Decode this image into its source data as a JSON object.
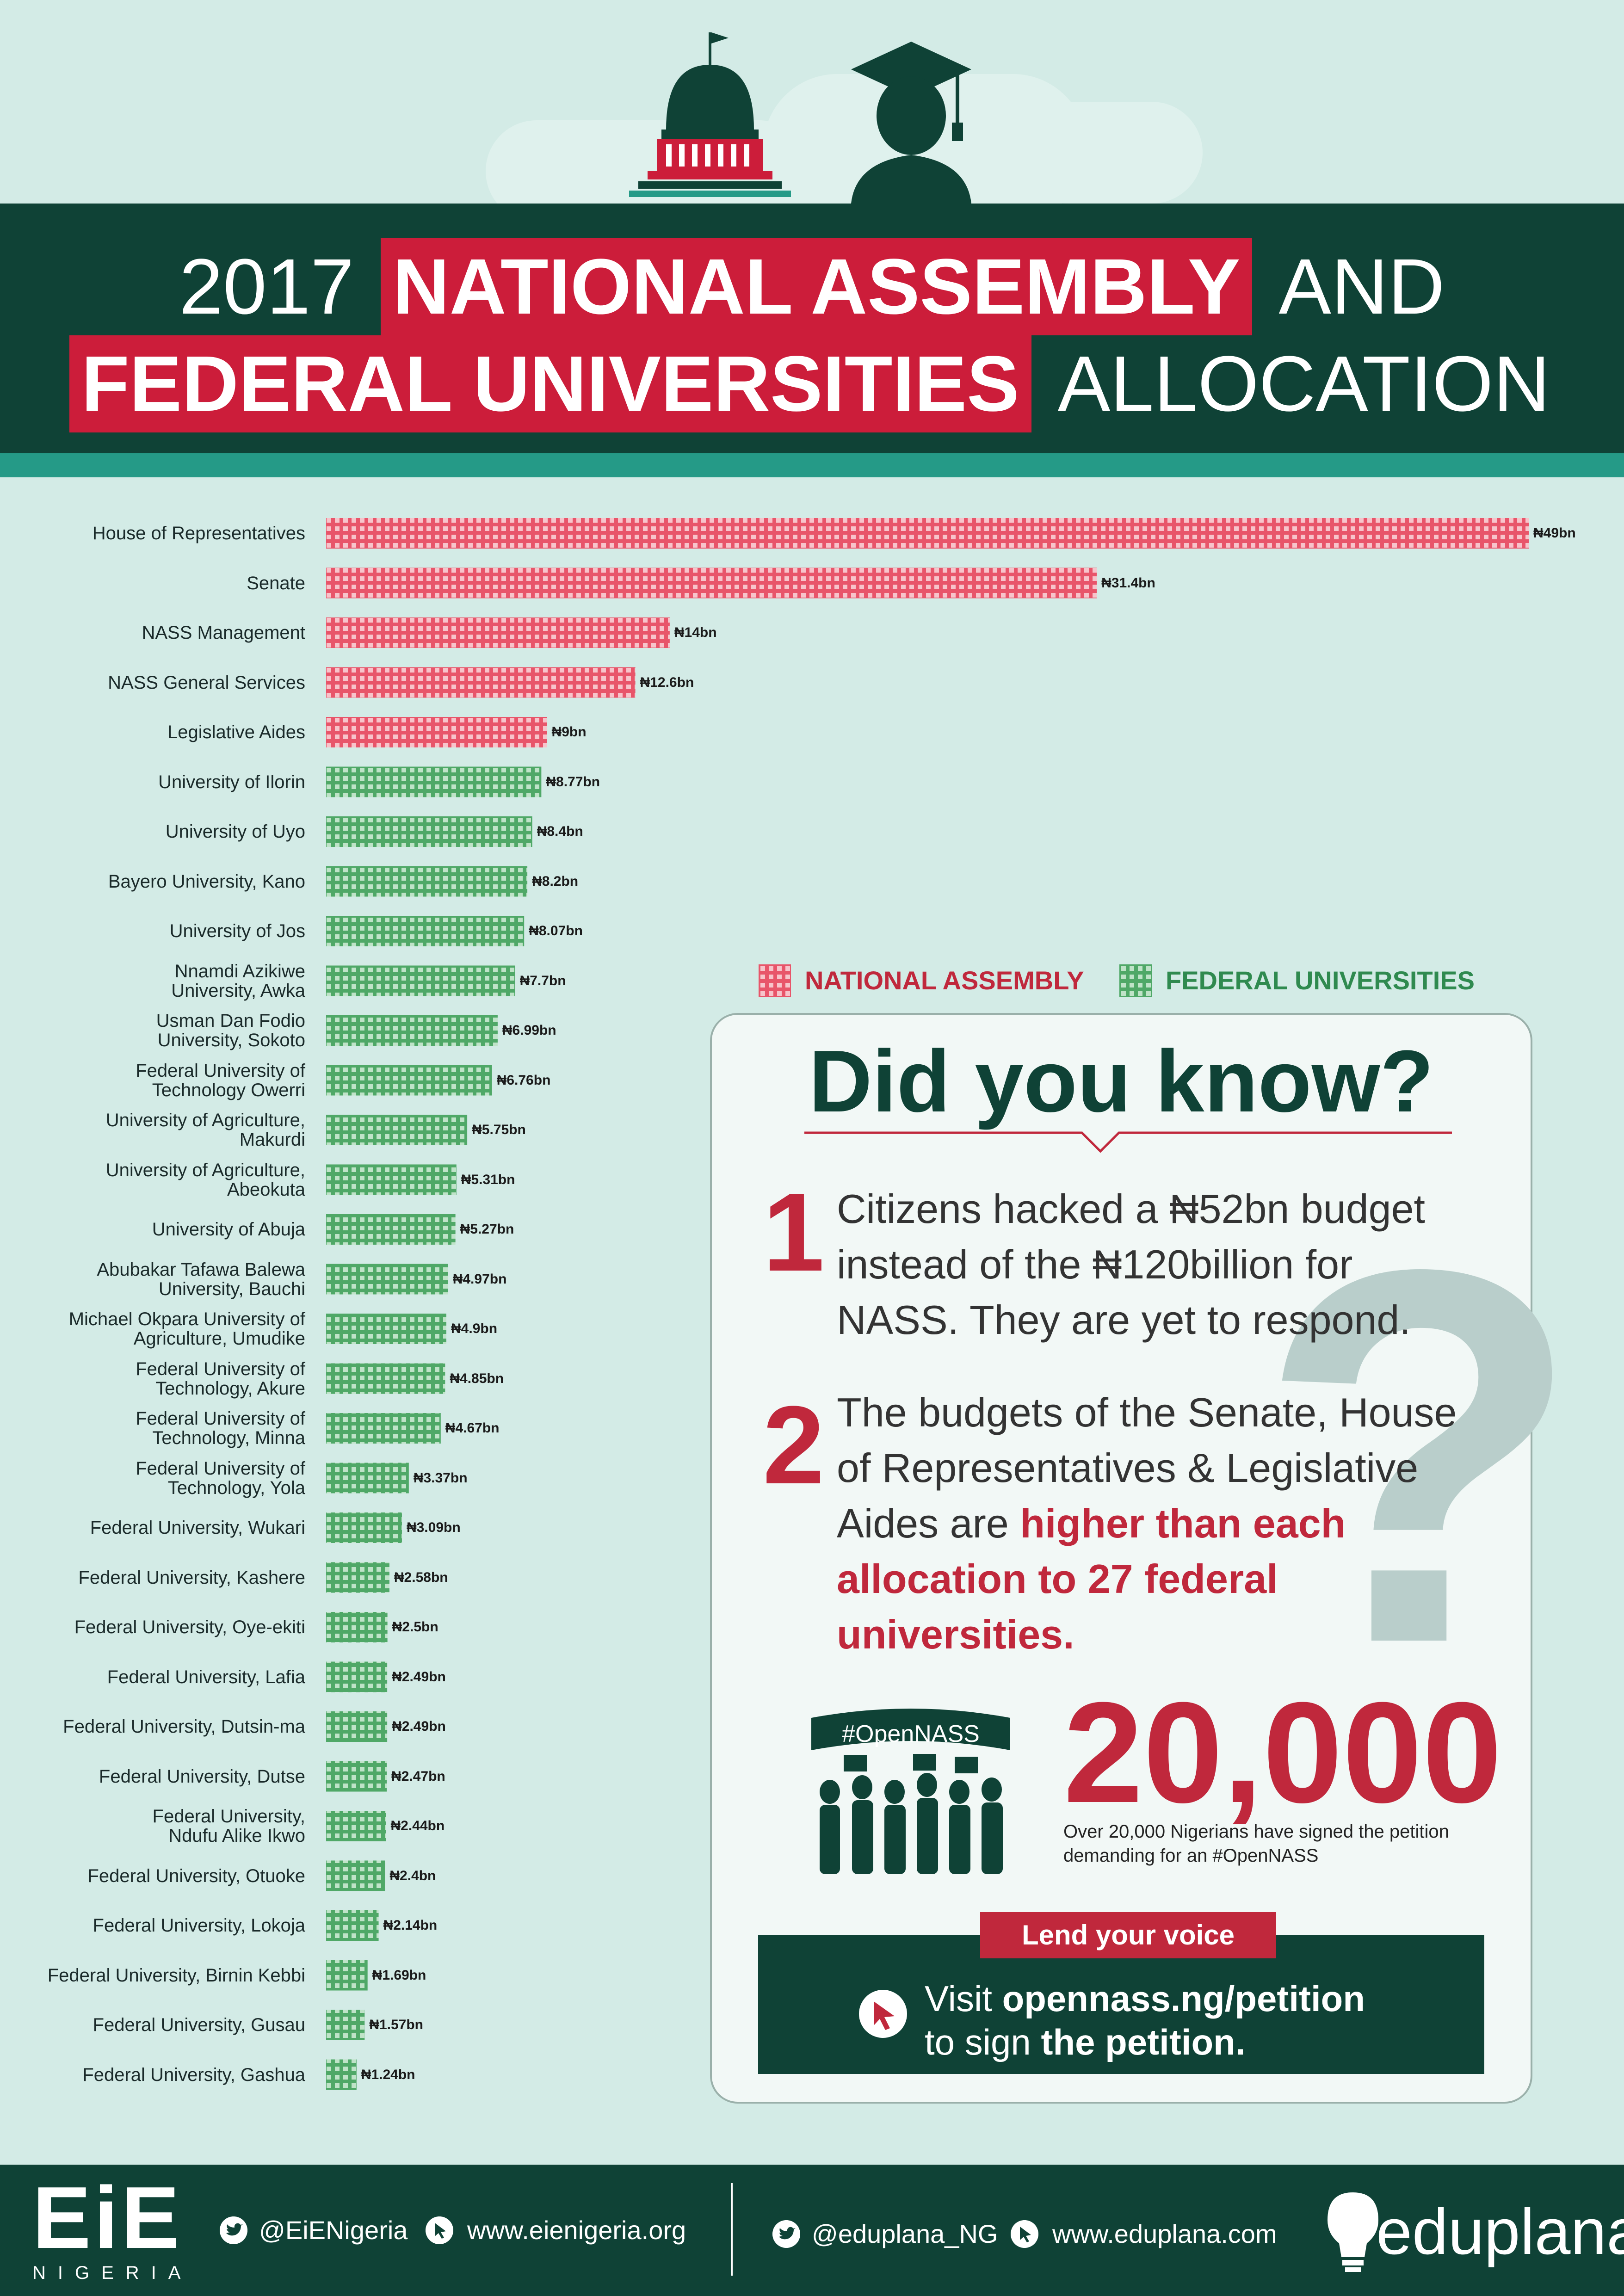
{
  "header": {
    "year": "2017",
    "highlight1": "NATIONAL ASSEMBLY",
    "word_and": "AND",
    "highlight2": "FEDERAL UNIVERSITIES",
    "word_allocation": "ALLOCATION"
  },
  "legend": {
    "national_assembly": "NATIONAL ASSEMBLY",
    "federal_universities": "FEDERAL UNIVERSITIES"
  },
  "chart_data": {
    "type": "bar",
    "orientation": "horizontal",
    "title": "2017 NATIONAL ASSEMBLY AND FEDERAL UNIVERSITIES ALLOCATION",
    "xlabel": "",
    "ylabel": "",
    "grid": false,
    "legend_position": "right",
    "colors": {
      "national_assembly": "#e8556a",
      "federal_universities": "#4fa867"
    },
    "categories": [
      [
        "House of Representatives"
      ],
      [
        "Senate"
      ],
      [
        "NASS Management"
      ],
      [
        "NASS General Services"
      ],
      [
        "Legislative Aides"
      ],
      [
        "University of Ilorin"
      ],
      [
        "University of Uyo"
      ],
      [
        "Bayero University, Kano"
      ],
      [
        "University of Jos"
      ],
      [
        "Nnamdi Azikiwe",
        "University, Awka"
      ],
      [
        "Usman Dan Fodio",
        "University, Sokoto"
      ],
      [
        "Federal University of",
        "Technology Owerri"
      ],
      [
        "University of Agriculture,",
        "Makurdi"
      ],
      [
        "University of Agriculture,",
        "Abeokuta"
      ],
      [
        "University of Abuja"
      ],
      [
        "Abubakar Tafawa Balewa",
        "University, Bauchi"
      ],
      [
        "Michael Okpara University of",
        "Agriculture, Umudike"
      ],
      [
        "Federal University of",
        "Technology, Akure"
      ],
      [
        "Federal University of",
        "Technology, Minna"
      ],
      [
        "Federal University of",
        "Technology, Yola"
      ],
      [
        "Federal University, Wukari"
      ],
      [
        "Federal University, Kashere"
      ],
      [
        "Federal University, Oye-ekiti"
      ],
      [
        "Federal University, Lafia"
      ],
      [
        "Federal University, Dutsin-ma"
      ],
      [
        "Federal University, Dutse"
      ],
      [
        "Federal University,",
        "Ndufu Alike Ikwo"
      ],
      [
        "Federal University, Otuoke"
      ],
      [
        "Federal University, Lokoja"
      ],
      [
        "Federal University, Birnin Kebbi"
      ],
      [
        "Federal University, Gusau"
      ],
      [
        "Federal University, Gashua"
      ]
    ],
    "values": [
      49,
      31.4,
      14,
      12.6,
      9,
      8.77,
      8.4,
      8.2,
      8.07,
      7.7,
      6.99,
      6.76,
      5.75,
      5.31,
      5.27,
      4.97,
      4.9,
      4.85,
      4.67,
      3.37,
      3.09,
      2.58,
      2.5,
      2.49,
      2.49,
      2.47,
      2.44,
      2.4,
      2.14,
      1.69,
      1.57,
      1.24
    ],
    "value_labels": [
      "₦49bn",
      "₦31.4bn",
      "₦14bn",
      "₦12.6bn",
      "₦9bn",
      "₦8.77bn",
      "₦8.4bn",
      "₦8.2bn",
      "₦8.07bn",
      "₦7.7bn",
      "₦6.99bn",
      "₦6.76bn",
      "₦5.75bn",
      "₦5.31bn",
      "₦5.27bn",
      "₦4.97bn",
      "₦4.9bn",
      "₦4.85bn",
      "₦4.67bn",
      "₦3.37bn",
      "₦3.09bn",
      "₦2.58bn",
      "₦2.5bn",
      "₦2.49bn",
      "₦2.49bn",
      "₦2.47bn",
      "₦2.44bn",
      "₦2.4bn",
      "₦2.14bn",
      "₦1.69bn",
      "₦1.57bn",
      "₦1.24bn"
    ],
    "groups": [
      "na",
      "na",
      "na",
      "na",
      "na",
      "fu",
      "fu",
      "fu",
      "fu",
      "fu",
      "fu",
      "fu",
      "fu",
      "fu",
      "fu",
      "fu",
      "fu",
      "fu",
      "fu",
      "fu",
      "fu",
      "fu",
      "fu",
      "fu",
      "fu",
      "fu",
      "fu",
      "fu",
      "fu",
      "fu",
      "fu",
      "fu"
    ],
    "xlim": [
      0,
      49
    ]
  },
  "did_you_know": {
    "title": "Did you know?",
    "fact1_number": "1",
    "fact1_lines": [
      "Citizens hacked a ₦52bn budget",
      "instead of the ₦120billion for",
      "NASS. They are yet to respond."
    ],
    "fact2_number": "2",
    "fact2_line1": "The budgets of the Senate, House",
    "fact2_line2": "of Representatives & Legislative",
    "fact2_line3_plain": "Aides are ",
    "fact2_line3_em": "higher than each",
    "fact2_line4": "allocation to 27 federal",
    "fact2_line5": "universities.",
    "hashtag_banner": "#OpenNASS",
    "big_count": "20,000",
    "count_caption": "Over 20,000 Nigerians have signed the petition demanding for an #OpenNASS"
  },
  "cta": {
    "badge": "Lend your voice",
    "line1_plain": "Visit ",
    "line1_bold": "opennass.ng/petition",
    "line2_plain": "to sign ",
    "line2_bold": "the petition."
  },
  "footer": {
    "logo_text": "EiE",
    "logo_subtext": "NIGERIA",
    "eie_twitter": "@EiENigeria",
    "eie_web": "www.eienigeria.org",
    "edu_twitter": "@eduplana_NG",
    "edu_web": "www.eduplana.com",
    "edu_logo": "eduplana",
    "icons": [
      "twitter-bird-icon",
      "cursor-icon",
      "twitter-bird-icon",
      "cursor-icon",
      "lightbulb-icon"
    ]
  }
}
